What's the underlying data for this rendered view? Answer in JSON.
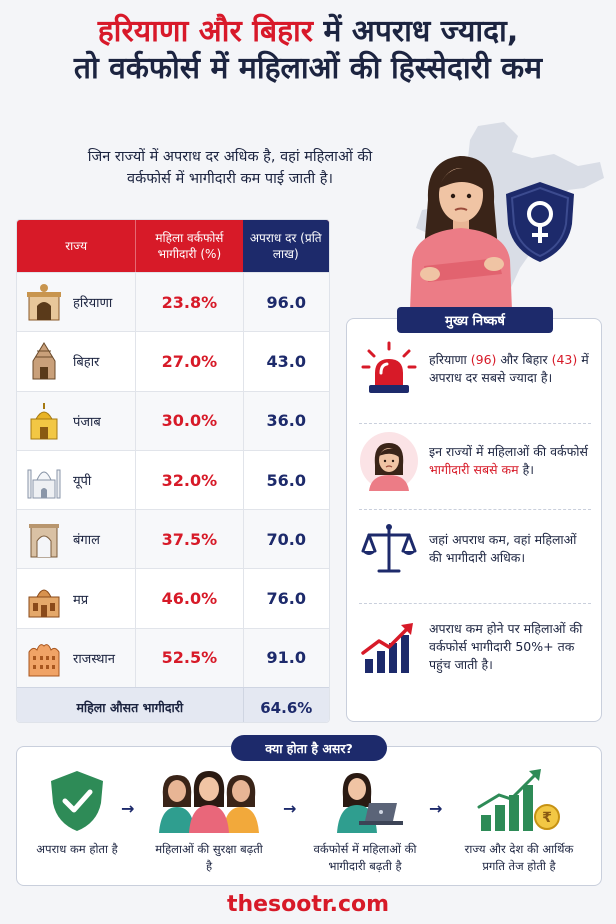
{
  "header": {
    "title_red": "हरियाणा और बिहार",
    "title_rest": " में अपराध ज्यादा,",
    "title_line2": "तो वर्कफोर्स में महिलाओं की हिस्सेदारी कम",
    "subtitle_line1": "जिन राज्यों में अपराध दर अधिक है, वहां महिलाओं की",
    "subtitle_line2": "वर्कफोर्स में भागीदारी कम पाई जाती है।"
  },
  "table": {
    "headers": {
      "state": "राज्य",
      "participation": "महिला वर्कफोर्स भागीदारी (%)",
      "crime_rate": "अपराध दर (प्रति लाख)"
    },
    "rows": [
      {
        "state": "हरियाणा",
        "participation": "23.8%",
        "crime_rate": "96.0"
      },
      {
        "state": "बिहार",
        "participation": "27.0%",
        "crime_rate": "43.0"
      },
      {
        "state": "पंजाब",
        "participation": "30.0%",
        "crime_rate": "36.0"
      },
      {
        "state": "यूपी",
        "participation": "32.0%",
        "crime_rate": "56.0"
      },
      {
        "state": "बंगाल",
        "participation": "37.5%",
        "crime_rate": "70.0"
      },
      {
        "state": "मप्र",
        "participation": "46.0%",
        "crime_rate": "76.0"
      },
      {
        "state": "राजस्थान",
        "participation": "52.5%",
        "crime_rate": "91.0"
      }
    ],
    "footer_label": "महिला औसत भागीदारी",
    "footer_value": "64.6%"
  },
  "findings": {
    "title": "मुख्य निष्कर्ष",
    "items": [
      {
        "icon": "siren-icon",
        "text_a": "हरियाणा ",
        "text_b": "(96)",
        "text_c": " और बिहार ",
        "text_d": "(43)",
        "text_e": " में अपराध दर सबसे ज्यादा है।"
      },
      {
        "icon": "woman-icon",
        "text_a": "इन राज्यों में महिलाओं की वर्कफोर्स ",
        "text_b": "भागीदारी सबसे कम",
        "text_c": " है।"
      },
      {
        "icon": "scale-icon",
        "text_a": "जहां अपराध कम, वहां महिलाओं की भागीदारी अधिक।"
      },
      {
        "icon": "growth-chart-icon",
        "text_a": "अपराध कम होने पर महिलाओं की वर्कफोर्स भागीदारी 50%+ तक पहुंच जाती है।"
      }
    ]
  },
  "impact": {
    "title": "क्या होता है असर?",
    "steps": [
      {
        "icon": "shield-check-icon",
        "text": "अपराध कम होता है"
      },
      {
        "icon": "women-group-icon",
        "text": "महिलाओं की सुरक्षा बढ़ती है"
      },
      {
        "icon": "woman-laptop-icon",
        "text": "वर्कफोर्स में महिलाओं की भागीदारी बढ़ती है"
      },
      {
        "icon": "growth-rupee-icon",
        "text": "राज्य और देश की आर्थिक प्रगति तेज होती है"
      }
    ],
    "arrow": "→"
  },
  "brand": "thesootr.com",
  "colors": {
    "red": "#d71a28",
    "navy": "#1d2a6b",
    "text": "#1c2440"
  }
}
